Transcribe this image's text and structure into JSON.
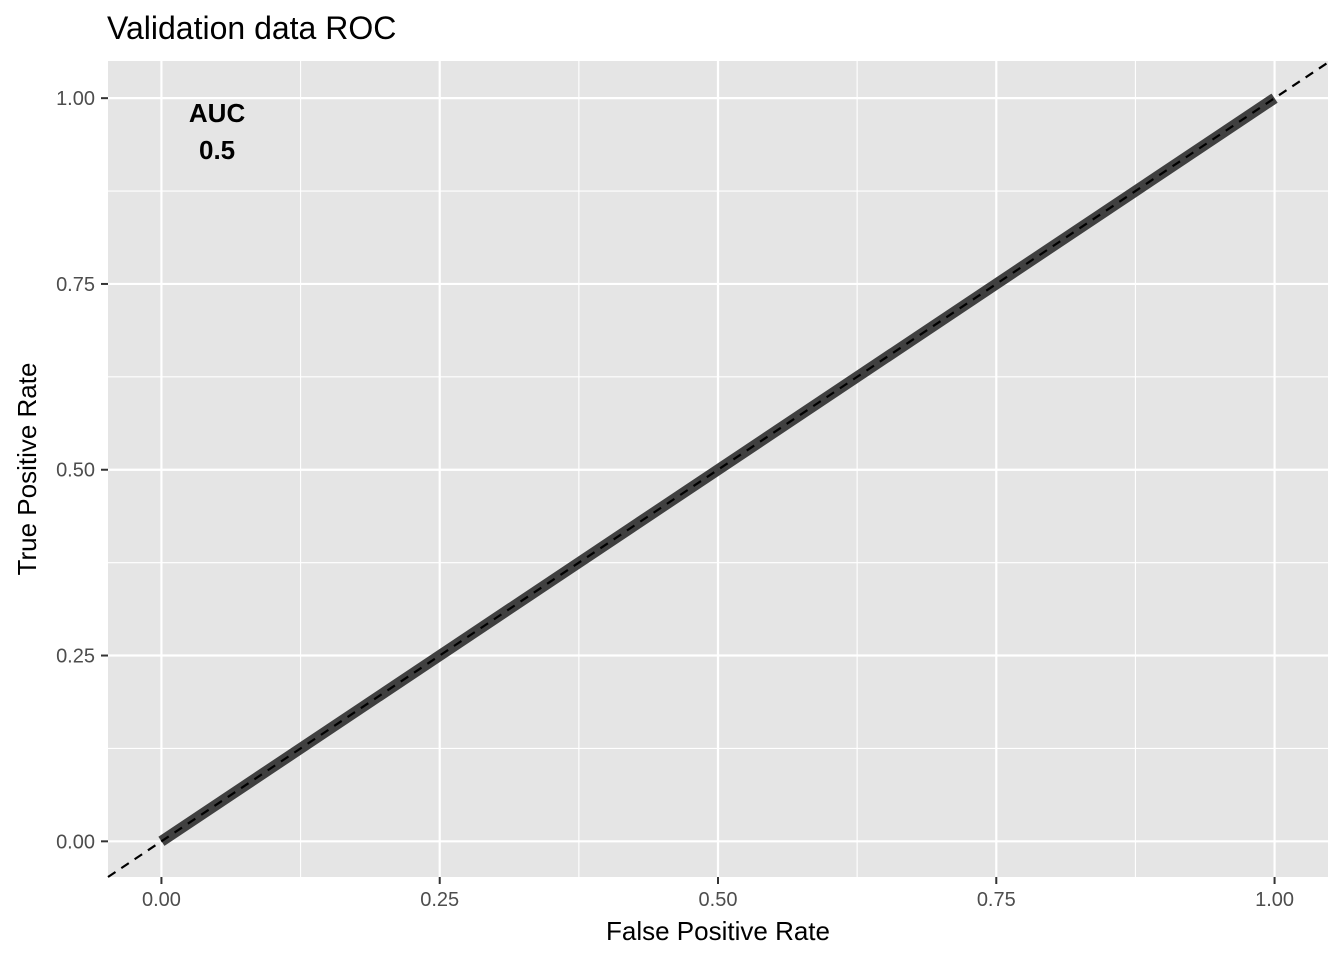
{
  "chart_data": {
    "type": "line",
    "title": "Validation data ROC",
    "xlabel": "False Positive Rate",
    "ylabel": "True Positive Rate",
    "xlim": [
      -0.048,
      1.048
    ],
    "ylim": [
      -0.048,
      1.05
    ],
    "x_ticks": [
      0,
      0.25,
      0.5,
      0.75,
      1
    ],
    "x_tick_labels": [
      "0.00",
      "0.25",
      "0.50",
      "0.75",
      "1.00"
    ],
    "y_ticks": [
      0,
      0.25,
      0.5,
      0.75,
      1
    ],
    "y_tick_labels": [
      "0.00",
      "0.25",
      "0.50",
      "0.75",
      "1.00"
    ],
    "grid": true,
    "series": [
      {
        "name": "ROC curve",
        "x": [
          0,
          1
        ],
        "y": [
          0,
          1
        ]
      }
    ],
    "reference_line": {
      "name": "chance diagonal",
      "slope": 1,
      "intercept": 0,
      "style": "dashed"
    },
    "annotation": {
      "label": "AUC",
      "value": "0.5",
      "x": 0.05,
      "y": 0.98
    },
    "colors": {
      "panel_background": "#e5e5e5",
      "grid": "#ffffff",
      "curve": "#404040",
      "reference": "#000000"
    }
  }
}
